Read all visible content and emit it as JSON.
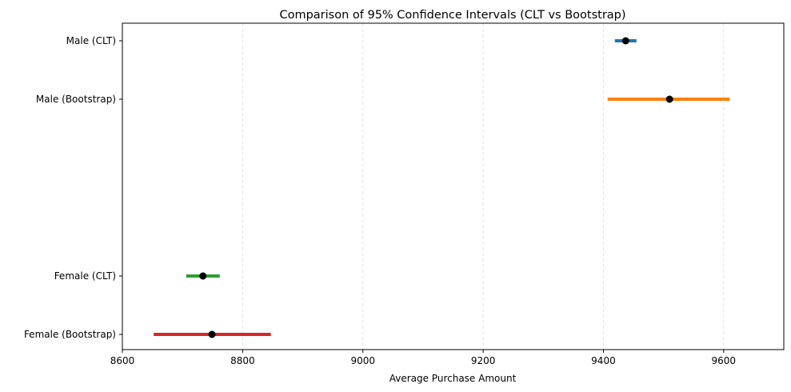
{
  "chart_data": {
    "type": "errorbar",
    "title": "Comparison of 95% Confidence Intervals (CLT vs Bootstrap)",
    "xlabel": "Average Purchase Amount",
    "ylabel": "",
    "xlim": [
      8600,
      9700
    ],
    "xticks": [
      8600,
      8800,
      9000,
      9200,
      9400,
      9600
    ],
    "grid": "x-dashed",
    "series": [
      {
        "name": "Male (CLT)",
        "mean": 9437,
        "lower": 9419,
        "upper": 9455,
        "color": "#1f77b4"
      },
      {
        "name": "Male (Bootstrap)",
        "mean": 9510,
        "lower": 9407,
        "upper": 9610,
        "color": "#ff7f0e"
      },
      {
        "name": "Female (CLT)",
        "mean": 8734,
        "lower": 8706,
        "upper": 8762,
        "color": "#2ca02c"
      },
      {
        "name": "Female (Bootstrap)",
        "mean": 8749,
        "lower": 8652,
        "upper": 8847,
        "color": "#d62728"
      }
    ],
    "marker_color": "#000000"
  }
}
